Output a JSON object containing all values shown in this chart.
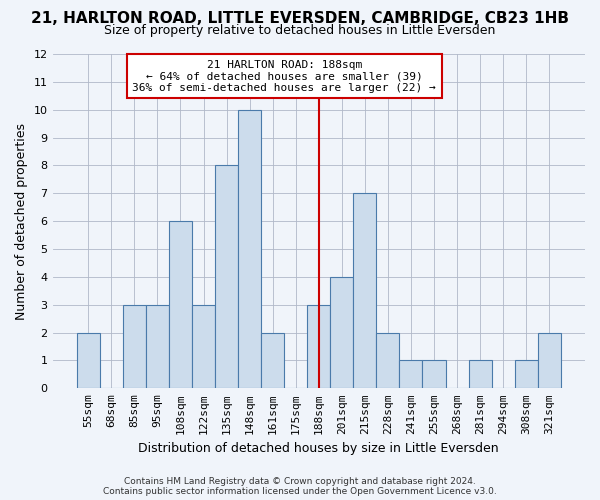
{
  "title_line1": "21, HARLTON ROAD, LITTLE EVERSDEN, CAMBRIDGE, CB23 1HB",
  "title_line2": "Size of property relative to detached houses in Little Eversden",
  "xlabel": "Distribution of detached houses by size in Little Eversden",
  "ylabel": "Number of detached properties",
  "categories": [
    "55sqm",
    "68sqm",
    "85sqm",
    "95sqm",
    "108sqm",
    "122sqm",
    "135sqm",
    "148sqm",
    "161sqm",
    "175sqm",
    "188sqm",
    "201sqm",
    "215sqm",
    "228sqm",
    "241sqm",
    "255sqm",
    "268sqm",
    "281sqm",
    "294sqm",
    "308sqm",
    "321sqm"
  ],
  "bar_values": [
    2,
    0,
    3,
    3,
    6,
    3,
    8,
    10,
    2,
    0,
    3,
    4,
    7,
    2,
    1,
    1,
    0,
    1,
    0,
    1,
    2
  ],
  "bar_color": "#ccdcec",
  "bar_edge_color": "#4a7aaa",
  "highlight_color": "#cc0000",
  "highlight_idx": 10,
  "annotation_text": "21 HARLTON ROAD: 188sqm\n← 64% of detached houses are smaller (39)\n36% of semi-detached houses are larger (22) →",
  "annotation_box_color": "#ffffff",
  "annotation_box_edge": "#cc0000",
  "ylim": [
    0,
    12
  ],
  "yticks": [
    0,
    1,
    2,
    3,
    4,
    5,
    6,
    7,
    8,
    9,
    10,
    11,
    12
  ],
  "footer_line1": "Contains HM Land Registry data © Crown copyright and database right 2024.",
  "footer_line2": "Contains public sector information licensed under the Open Government Licence v3.0.",
  "background_color": "#f0f4fa",
  "grid_color": "#b0b8c8",
  "tick_label_fontsize": 8,
  "axis_label_fontsize": 9,
  "ylabel_fontsize": 9,
  "title_fontsize1": 11,
  "title_fontsize2": 9,
  "ann_fontsize": 8,
  "footer_fontsize": 6.5
}
